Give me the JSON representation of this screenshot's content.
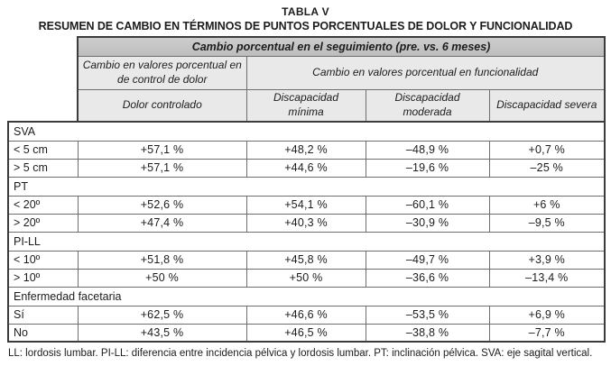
{
  "title": {
    "line1": "TABLA V",
    "line2": "RESUMEN DE CAMBIO EN TÉRMINOS DE PUNTOS PORCENTUALES DE DOLOR Y FUNCIONALIDAD"
  },
  "header": {
    "band": "Cambio porcentual en el seguimiento (pre. vs. 6 meses)",
    "group_pain": "Cambio en valores porcentual en de control de dolor",
    "group_function": "Cambio en valores porcentual en  funcionalidad",
    "columns": [
      "Dolor controlado",
      "Discapacidad mínima",
      "Discapacidad moderada",
      "Discapacidad severa"
    ]
  },
  "sections": [
    {
      "label": "SVA",
      "rows": [
        {
          "label": "< 5 cm",
          "values": [
            "+57,1 %",
            "+48,2 %",
            "–48,9 %",
            "+0,7 %"
          ]
        },
        {
          "label": "> 5 cm",
          "values": [
            "+57,1 %",
            "+44,6 %",
            "–19,6 %",
            "–25 %"
          ]
        }
      ]
    },
    {
      "label": "PT",
      "rows": [
        {
          "label": "< 20º",
          "values": [
            "+52,6 %",
            "+54,1 %",
            "–60,1 %",
            "+6 %"
          ]
        },
        {
          "label": "> 20º",
          "values": [
            "+47,4 %",
            "+40,3 %",
            "–30,9 %",
            "–9,5 %"
          ]
        }
      ]
    },
    {
      "label": "PI-LL",
      "rows": [
        {
          "label": "< 10º",
          "values": [
            "+51,8 %",
            "+45,8 %",
            "–49,7 %",
            "+3,9 %"
          ]
        },
        {
          "label": "> 10º",
          "values": [
            "+50 %",
            "+50 %",
            "–36,6 %",
            "–13,4 %"
          ]
        }
      ]
    },
    {
      "label": "Enfermedad facetaria",
      "rows": [
        {
          "label": "Sí",
          "values": [
            "+62,5 %",
            "+46,6 %",
            "–53,5 %",
            "+6,9 %"
          ]
        },
        {
          "label": "No",
          "values": [
            "+43,5 %",
            "+46,5 %",
            "–38,8 %",
            "–7,7 %"
          ]
        }
      ]
    }
  ],
  "footnote": "LL: lordosis lumbar. PI-LL: diferencia entre incidencia pélvica y lordosis lumbar. PT: inclinación pélvica. SVA: eje sagital vertical.",
  "colors": {
    "band_bg": "#bdbdbd",
    "header_bg": "#e9e9e9",
    "border_outer": "#3c3c3c",
    "border_inner": "#6e6e6e",
    "text": "#1c1c1c"
  }
}
